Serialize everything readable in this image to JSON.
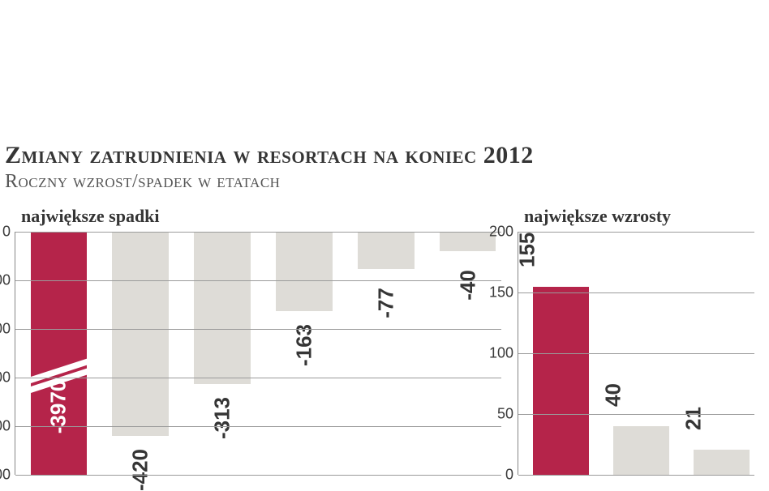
{
  "title": "Zmiany zatrudnienia w resortach na koniec 2012",
  "subtitle": "Roczny wzrost/spadek w etatach",
  "colors": {
    "highlight_bar": "#b5244a",
    "normal_bar": "#dedcd7",
    "gridline": "#9b9b9b",
    "text_dark": "#353535",
    "text_light": "#ffffff",
    "background": "#ffffff"
  },
  "typography": {
    "title_fontsize_pt": 22,
    "subtitle_fontsize_pt": 18,
    "panel_title_fontsize_pt": 16,
    "axis_label_fontsize_pt": 13,
    "bar_label_fontsize_pt": 19,
    "bar_label_weight": "bold",
    "font_family_title": "Georgia, serif",
    "font_family_labels": "Arial, Helvetica, sans-serif"
  },
  "left_chart": {
    "type": "bar",
    "title": "największe spadki",
    "y_min": -500,
    "y_max": 0,
    "y_tick_step": 100,
    "bar_gap_ratio": 0.25,
    "broken_axis_bar_index": 0,
    "data": [
      {
        "value": -3970,
        "display_value": -500,
        "color": "#b5244a",
        "label_color": "#ffffff",
        "is_clipped": true
      },
      {
        "value": -420,
        "display_value": -420,
        "color": "#dedcd7",
        "label_color": "#353535"
      },
      {
        "value": -313,
        "display_value": -313,
        "color": "#dedcd7",
        "label_color": "#353535"
      },
      {
        "value": -163,
        "display_value": -163,
        "color": "#dedcd7",
        "label_color": "#353535"
      },
      {
        "value": -77,
        "display_value": -77,
        "color": "#dedcd7",
        "label_color": "#353535"
      },
      {
        "value": -40,
        "display_value": -40,
        "color": "#dedcd7",
        "label_color": "#353535"
      }
    ]
  },
  "right_chart": {
    "type": "bar",
    "title": "największe wzrosty",
    "y_min": 0,
    "y_max": 200,
    "y_tick_step": 50,
    "bar_gap_ratio": 0.25,
    "data": [
      {
        "value": 155,
        "color": "#b5244a",
        "label_color": "#353535"
      },
      {
        "value": 40,
        "color": "#dedcd7",
        "label_color": "#353535"
      },
      {
        "value": 21,
        "color": "#dedcd7",
        "label_color": "#353535"
      }
    ]
  }
}
